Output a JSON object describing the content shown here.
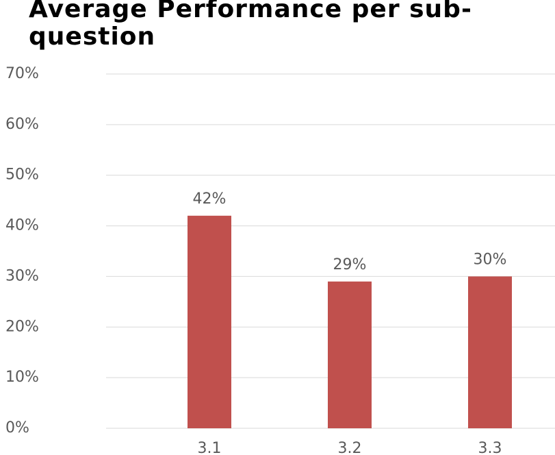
{
  "chart_data": {
    "type": "bar",
    "title": "Average Performance per sub- question",
    "categories": [
      "3.1",
      "3.2",
      "3.3"
    ],
    "values": [
      42,
      29,
      30
    ],
    "value_labels": [
      "42%",
      "29%",
      "30%"
    ],
    "color": "#c0504d",
    "ylim": [
      0,
      70
    ],
    "yticks": [
      {
        "value": 0,
        "label": "0%"
      },
      {
        "value": 10,
        "label": "10%"
      },
      {
        "value": 20,
        "label": "20%"
      },
      {
        "value": 30,
        "label": "30%"
      },
      {
        "value": 40,
        "label": "40%"
      },
      {
        "value": 50,
        "label": "50%"
      },
      {
        "value": 60,
        "label": "60%"
      },
      {
        "value": 70,
        "label": "70%"
      }
    ],
    "grid": true
  }
}
